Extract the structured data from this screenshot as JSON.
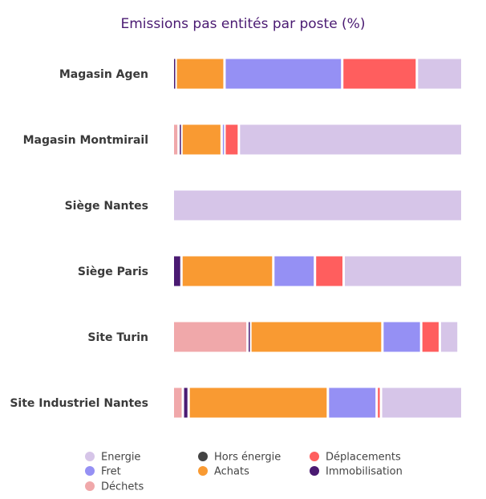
{
  "chart_data": {
    "type": "bar",
    "orientation": "horizontal",
    "stacked": true,
    "normalized": true,
    "title": "Emissions pas entités par poste (%)",
    "xlabel": "",
    "ylabel": "",
    "xlim": [
      0,
      100
    ],
    "grid": false,
    "legend_position": "bottom",
    "categories": [
      "Magasin Agen",
      "Magasin Montmirail",
      "Siège Nantes",
      "Siège Paris",
      "Site Turin",
      "Site Industriel Nantes"
    ],
    "series": [
      {
        "name": "Déchets",
        "color": "#f0a8aa",
        "values": [
          0,
          2,
          0,
          0,
          26,
          3.5
        ]
      },
      {
        "name": "Immobilisation",
        "color": "#4a1a72",
        "values": [
          1,
          1,
          0,
          3,
          1,
          2
        ]
      },
      {
        "name": "Achats",
        "color": "#f99a32",
        "values": [
          17,
          14,
          0,
          32,
          46,
          48.5
        ]
      },
      {
        "name": "Fret",
        "color": "#9590f4",
        "values": [
          41,
          1,
          0,
          14.5,
          13.5,
          17
        ]
      },
      {
        "name": "Déplacements",
        "color": "#ff5e5e",
        "values": [
          26,
          5,
          0,
          10,
          6.5,
          1.5
        ]
      },
      {
        "name": "Hors énergie",
        "color": "#444444",
        "values": [
          0,
          0,
          0,
          0,
          0,
          0
        ]
      },
      {
        "name": "Energie",
        "color": "#d6c5e8",
        "values": [
          15,
          77,
          100,
          40.5,
          6.5,
          27.5
        ]
      }
    ],
    "legend": [
      {
        "name": "Energie",
        "color": "#d6c5e8"
      },
      {
        "name": "Hors énergie",
        "color": "#444444"
      },
      {
        "name": "Déplacements",
        "color": "#ff5e5e"
      },
      {
        "name": "Fret",
        "color": "#9590f4"
      },
      {
        "name": "Achats",
        "color": "#f99a32"
      },
      {
        "name": "Immobilisation",
        "color": "#4a1a72"
      },
      {
        "name": "Déchets",
        "color": "#f0a8aa"
      }
    ]
  }
}
